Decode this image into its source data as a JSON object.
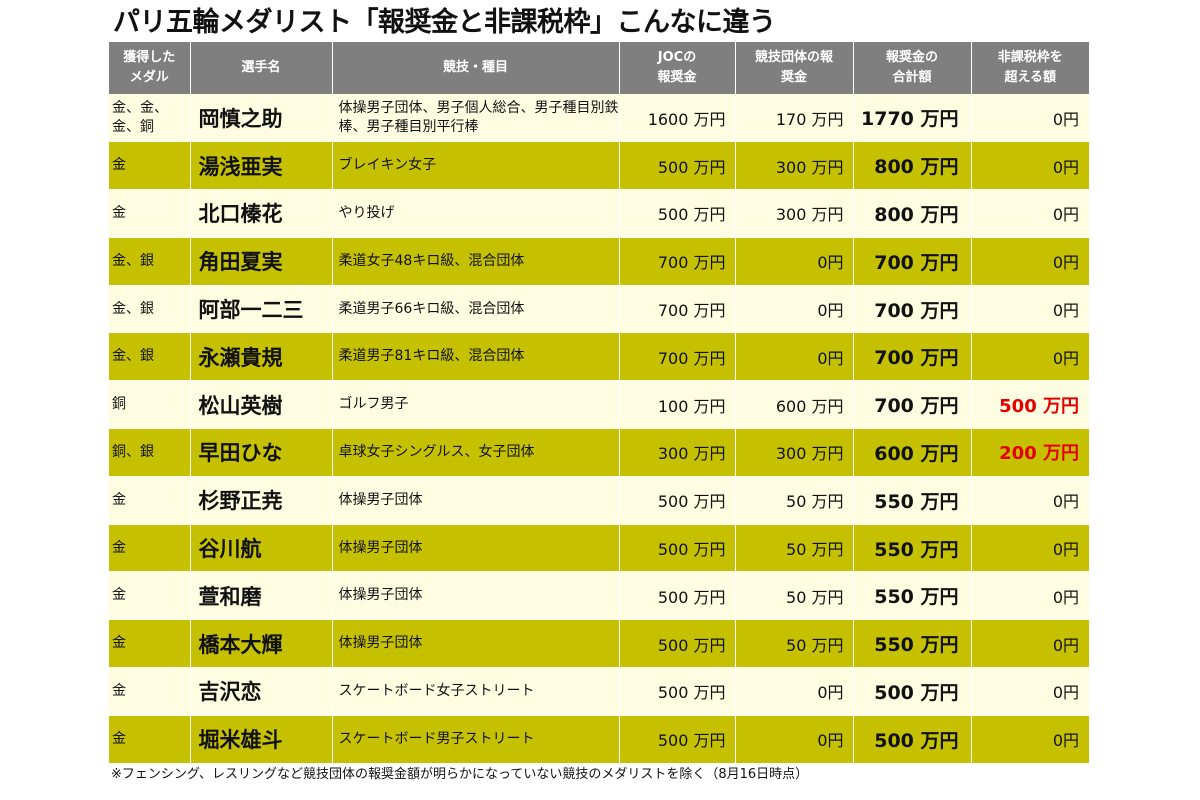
{
  "title": "パリ五輪メダリスト「報奨金と非課税枠」こんなに違う",
  "headers": {
    "medal": [
      "獲得した",
      "メダル"
    ],
    "athlete": "選手名",
    "event": "競技・種目",
    "joc": [
      "JOCの",
      "報奨金"
    ],
    "federation": [
      "競技団体の報",
      "奨金"
    ],
    "total": [
      "報奨金の",
      "合計額"
    ],
    "excess": [
      "非課税枠を",
      "超える額"
    ]
  },
  "colors": {
    "header_bg": "#7f7f7f",
    "row_light": "#fefde2",
    "row_dark": "#c5c100",
    "excess_red": "#e30000"
  },
  "rows": [
    {
      "medal": "金、金、金、銅",
      "name": "岡慎之助",
      "event": "体操男子団体、男子個人総合、男子種目別鉄棒、男子種目別平行棒",
      "joc": "1600 万円",
      "federation": "170 万円",
      "total": "1770 万円",
      "excess": "0円",
      "highlight": false
    },
    {
      "medal": "金",
      "name": "湯浅亜実",
      "event": "ブレイキン女子",
      "joc": "500 万円",
      "federation": "300 万円",
      "total": "800 万円",
      "excess": "0円",
      "highlight": false
    },
    {
      "medal": "金",
      "name": "北口榛花",
      "event": "やり投げ",
      "joc": "500 万円",
      "federation": "300 万円",
      "total": "800 万円",
      "excess": "0円",
      "highlight": false
    },
    {
      "medal": "金、銀",
      "name": "角田夏実",
      "event": "柔道女子48キロ級、混合団体",
      "joc": "700 万円",
      "federation": "0円",
      "total": "700 万円",
      "excess": "0円",
      "highlight": false
    },
    {
      "medal": "金、銀",
      "name": "阿部一二三",
      "event": "柔道男子66キロ級、混合団体",
      "joc": "700 万円",
      "federation": "0円",
      "total": "700 万円",
      "excess": "0円",
      "highlight": false
    },
    {
      "medal": "金、銀",
      "name": "永瀬貴規",
      "event": "柔道男子81キロ級、混合団体",
      "joc": "700 万円",
      "federation": "0円",
      "total": "700 万円",
      "excess": "0円",
      "highlight": false
    },
    {
      "medal": "銅",
      "name": "松山英樹",
      "event": "ゴルフ男子",
      "joc": "100 万円",
      "federation": "600 万円",
      "total": "700 万円",
      "excess": "500 万円",
      "highlight": true
    },
    {
      "medal": "銅、銀",
      "name": "早田ひな",
      "event": "卓球女子シングルス、女子団体",
      "joc": "300 万円",
      "federation": "300 万円",
      "total": "600 万円",
      "excess": "200 万円",
      "highlight": true
    },
    {
      "medal": "金",
      "name": "杉野正尭",
      "event": "体操男子団体",
      "joc": "500 万円",
      "federation": "50 万円",
      "total": "550 万円",
      "excess": "0円",
      "highlight": false
    },
    {
      "medal": "金",
      "name": "谷川航",
      "event": "体操男子団体",
      "joc": "500 万円",
      "federation": "50 万円",
      "total": "550 万円",
      "excess": "0円",
      "highlight": false
    },
    {
      "medal": "金",
      "name": "萱和磨",
      "event": "体操男子団体",
      "joc": "500 万円",
      "federation": "50 万円",
      "total": "550 万円",
      "excess": "0円",
      "highlight": false
    },
    {
      "medal": "金",
      "name": "橋本大輝",
      "event": "体操男子団体",
      "joc": "500 万円",
      "federation": "50 万円",
      "total": "550 万円",
      "excess": "0円",
      "highlight": false
    },
    {
      "medal": "金",
      "name": "吉沢恋",
      "event": "スケートボード女子ストリート",
      "joc": "500 万円",
      "federation": "0円",
      "total": "500 万円",
      "excess": "0円",
      "highlight": false
    },
    {
      "medal": "金",
      "name": "堀米雄斗",
      "event": "スケートボード男子ストリート",
      "joc": "500 万円",
      "federation": "0円",
      "total": "500 万円",
      "excess": "0円",
      "highlight": false
    }
  ],
  "footnote": "※フェンシング、レスリングなど競技団体の報奨金額が明らかになっていない競技のメダリストを除く（8月16日時点）"
}
